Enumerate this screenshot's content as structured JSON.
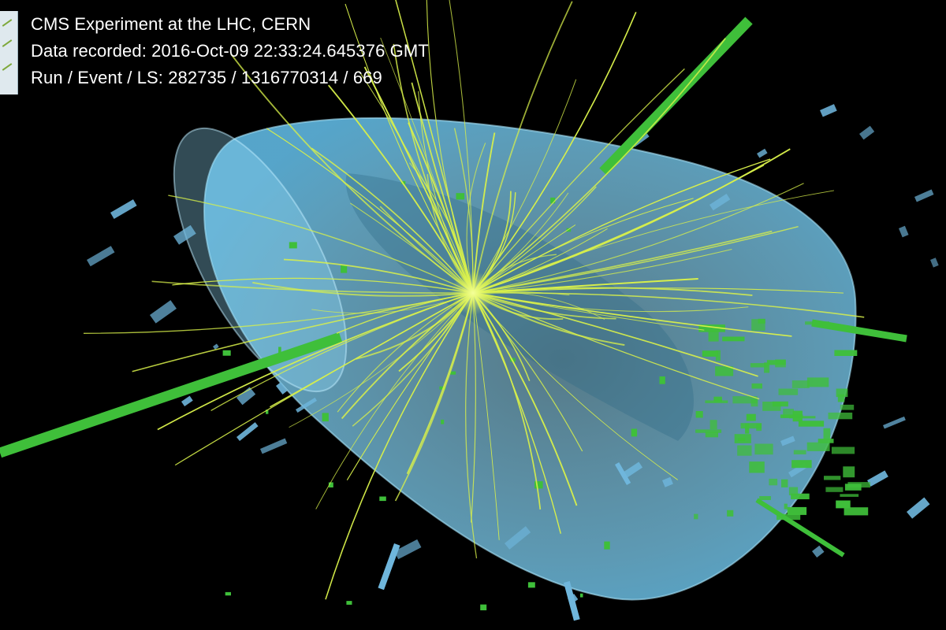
{
  "caption": {
    "experiment": "CMS Experiment at the LHC, CERN",
    "recorded": "Data recorded: 2016-Oct-09 22:33:24.645376 GMT",
    "run_event_ls": "Run / Event / LS: 282735 / 1316770314 / 669"
  },
  "colors": {
    "background": "#000000",
    "detector": "#7fd0f0",
    "tracks": "#d8f04a",
    "energy_deposits": "#3fbf3a",
    "muon_chambers": "#6fb6dc"
  }
}
